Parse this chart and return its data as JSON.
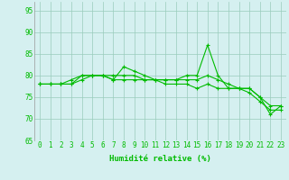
{
  "x": [
    0,
    1,
    2,
    3,
    4,
    5,
    6,
    7,
    8,
    9,
    10,
    11,
    12,
    13,
    14,
    15,
    16,
    17,
    18,
    19,
    20,
    21,
    22,
    23
  ],
  "line1": [
    78,
    78,
    78,
    78,
    80,
    80,
    80,
    79,
    82,
    81,
    80,
    79,
    79,
    79,
    80,
    80,
    87,
    80,
    77,
    77,
    77,
    75,
    71,
    73
  ],
  "line2": [
    78,
    78,
    78,
    79,
    80,
    80,
    80,
    80,
    80,
    80,
    79,
    79,
    79,
    79,
    79,
    79,
    80,
    79,
    78,
    77,
    77,
    75,
    73,
    73
  ],
  "line3": [
    78,
    78,
    78,
    78,
    79,
    80,
    80,
    79,
    79,
    79,
    79,
    79,
    78,
    78,
    78,
    77,
    78,
    77,
    77,
    77,
    76,
    74,
    72,
    72
  ],
  "line_color": "#00bb00",
  "bg_color": "#d5f0f0",
  "grid_color": "#99ccbb",
  "xlabel": "Humidité relative (%)",
  "ylim": [
    65,
    97
  ],
  "xlim": [
    -0.5,
    23.5
  ],
  "yticks": [
    65,
    70,
    75,
    80,
    85,
    90,
    95
  ],
  "xticks": [
    0,
    1,
    2,
    3,
    4,
    5,
    6,
    7,
    8,
    9,
    10,
    11,
    12,
    13,
    14,
    15,
    16,
    17,
    18,
    19,
    20,
    21,
    22,
    23
  ],
  "marker": "+",
  "markersize": 3,
  "linewidth": 0.8,
  "tick_fontsize": 5.5,
  "xlabel_fontsize": 6.5
}
